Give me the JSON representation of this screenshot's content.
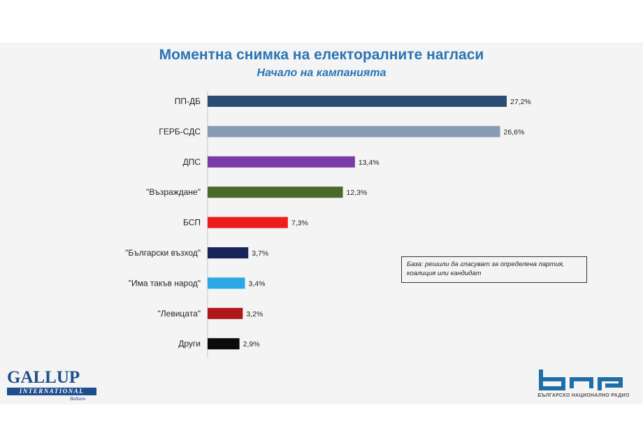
{
  "chart_data": {
    "type": "bar",
    "orientation": "horizontal",
    "title": "Моментна снимка на електоралните нагласи",
    "subtitle": "Начало на кампанията",
    "categories": [
      "ПП-ДБ",
      "ГЕРБ-СДС",
      "ДПС",
      "\"Възраждане\"",
      "БСП",
      "\"Български възход\"",
      "\"Има такъв народ\"",
      "\"Левицата\"",
      "Други"
    ],
    "values": [
      27.2,
      26.6,
      13.4,
      12.3,
      7.3,
      3.7,
      3.4,
      3.2,
      2.9
    ],
    "value_labels": [
      "27,2%",
      "26,6%",
      "13,4%",
      "12,3%",
      "7,3%",
      "3,7%",
      "3,4%",
      "3,2%",
      "2,9%"
    ],
    "colors": [
      "#2b4d74",
      "#8a9bb5",
      "#7a3aa8",
      "#4a6a2a",
      "#ee1c1c",
      "#16245a",
      "#2aa8e6",
      "#b01818",
      "#0b0b0b"
    ],
    "xlim": [
      0,
      27.2
    ],
    "grid": false,
    "legend": "none"
  },
  "note": {
    "line1": "База: решили да гласуват за определена партия,",
    "line2": "коалиция или кандидат"
  },
  "logos": {
    "gallup_name": "GALLUP",
    "gallup_band": "INTERNATIONAL",
    "gallup_sub": "Balkans",
    "bnr_text": "БЪЛГАРСКО НАЦИОНАЛНО РАДИО",
    "bnr_color": "#1e6fa8"
  }
}
